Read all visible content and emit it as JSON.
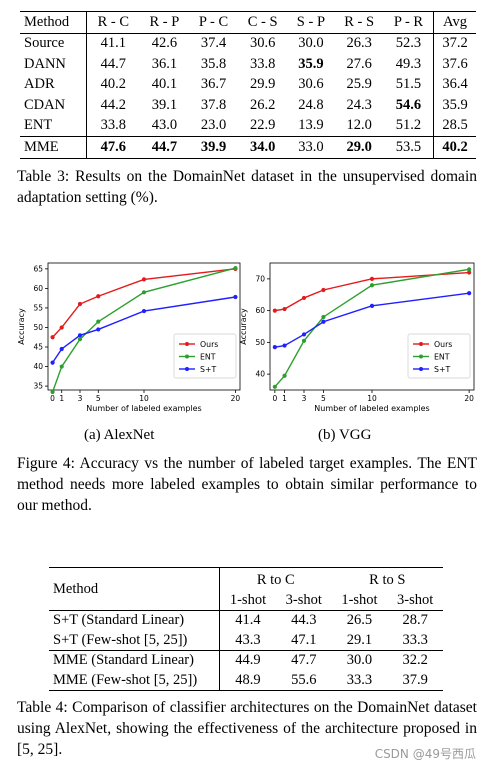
{
  "table3": {
    "columns": [
      "Method",
      "R - C",
      "R - P",
      "P - C",
      "C - S",
      "S - P",
      "R - S",
      "P - R",
      "Avg"
    ],
    "rows": [
      {
        "cells": [
          "Source",
          "41.1",
          "42.6",
          "37.4",
          "30.6",
          "30.0",
          "26.3",
          "52.3",
          "37.2"
        ],
        "bold": []
      },
      {
        "cells": [
          "DANN",
          "44.7",
          "36.1",
          "35.8",
          "33.8",
          "35.9",
          "27.6",
          "49.3",
          "37.6"
        ],
        "bold": [
          5
        ]
      },
      {
        "cells": [
          "ADR",
          "40.2",
          "40.1",
          "36.7",
          "29.9",
          "30.6",
          "25.9",
          "51.5",
          "36.4"
        ],
        "bold": []
      },
      {
        "cells": [
          "CDAN",
          "44.2",
          "39.1",
          "37.8",
          "26.2",
          "24.8",
          "24.3",
          "54.6",
          "35.9"
        ],
        "bold": [
          7
        ]
      },
      {
        "cells": [
          "ENT",
          "33.8",
          "43.0",
          "23.0",
          "22.9",
          "13.9",
          "12.0",
          "51.2",
          "28.5"
        ],
        "bold": []
      },
      {
        "cells": [
          "MME",
          "47.6",
          "44.7",
          "39.9",
          "34.0",
          "33.0",
          "29.0",
          "53.5",
          "40.2"
        ],
        "bold": [
          1,
          2,
          3,
          4,
          6,
          8
        ]
      }
    ],
    "caption": "Table 3: Results on the DomainNet dataset in the unsupervised domain adaptation setting (%)."
  },
  "chart_data": [
    {
      "type": "line",
      "subfig_label": "(a) AlexNet",
      "xlabel": "Number of labeled examples",
      "ylabel": "Accuracy",
      "xticks": [
        0,
        1,
        3,
        5,
        10,
        20
      ],
      "yticks": [
        35,
        40,
        45,
        50,
        55,
        60,
        65
      ],
      "xlim": [
        -0.5,
        20.5
      ],
      "ylim": [
        34,
        66.5
      ],
      "legend_position": "center-right",
      "series": [
        {
          "name": "Ours",
          "color": "#e41a1c",
          "x": [
            0,
            1,
            3,
            5,
            10,
            20
          ],
          "y": [
            47.5,
            50.0,
            56.0,
            58.0,
            62.3,
            65.0
          ]
        },
        {
          "name": "ENT",
          "color": "#2ca02c",
          "x": [
            0,
            1,
            3,
            5,
            10,
            20
          ],
          "y": [
            33.5,
            40.0,
            47.0,
            51.5,
            59.0,
            65.2
          ]
        },
        {
          "name": "S+T",
          "color": "#1f1fff",
          "x": [
            0,
            1,
            3,
            5,
            10,
            20
          ],
          "y": [
            41.0,
            44.5,
            48.0,
            49.5,
            54.2,
            57.8
          ]
        }
      ]
    },
    {
      "type": "line",
      "subfig_label": "(b) VGG",
      "xlabel": "Number of labeled examples",
      "ylabel": "Accuracy",
      "xticks": [
        0,
        1,
        3,
        5,
        10,
        20
      ],
      "yticks": [
        40,
        50,
        60,
        70
      ],
      "xlim": [
        -0.5,
        20.5
      ],
      "ylim": [
        35,
        75
      ],
      "legend_position": "center-right",
      "series": [
        {
          "name": "Ours",
          "color": "#e41a1c",
          "x": [
            0,
            1,
            3,
            5,
            10,
            20
          ],
          "y": [
            60.0,
            60.5,
            64.0,
            66.5,
            70.0,
            72.0
          ]
        },
        {
          "name": "ENT",
          "color": "#2ca02c",
          "x": [
            0,
            1,
            3,
            5,
            10,
            20
          ],
          "y": [
            36.0,
            39.5,
            50.5,
            58.0,
            68.0,
            73.0
          ]
        },
        {
          "name": "S+T",
          "color": "#1f1fff",
          "x": [
            0,
            1,
            3,
            5,
            10,
            20
          ],
          "y": [
            48.5,
            49.0,
            52.5,
            56.5,
            61.5,
            65.5
          ]
        }
      ]
    }
  ],
  "figure4": {
    "caption": "Figure 4: Accuracy vs the number of labeled target examples. The ENT method needs more labeled examples to obtain similar performance to our method."
  },
  "table4": {
    "header": {
      "method": "Method",
      "groups": [
        "R to C",
        "R to S"
      ],
      "sub": [
        "1-shot",
        "3-shot",
        "1-shot",
        "3-shot"
      ]
    },
    "rows": [
      {
        "cells": [
          "S+T (Standard Linear)",
          "41.4",
          "44.3",
          "26.5",
          "28.7"
        ],
        "bold": []
      },
      {
        "cells": [
          "S+T (Few-shot [5, 25])",
          "43.3",
          "47.1",
          "29.1",
          "33.3"
        ],
        "bold": [
          1,
          2,
          3,
          4
        ]
      },
      {
        "cells": [
          "MME (Standard Linear)",
          "44.9",
          "47.7",
          "30.0",
          "32.2"
        ],
        "bold": []
      },
      {
        "cells": [
          "MME (Few-shot [5, 25])",
          "48.9",
          "55.6",
          "33.3",
          "37.9"
        ],
        "bold": [
          1,
          2,
          3,
          4
        ]
      }
    ],
    "caption": "Table 4: Comparison of classifier architectures on the DomainNet dataset using AlexNet, showing the effectiveness of the architecture proposed in [5, 25]."
  },
  "watermark": "CSDN @49号西瓜"
}
